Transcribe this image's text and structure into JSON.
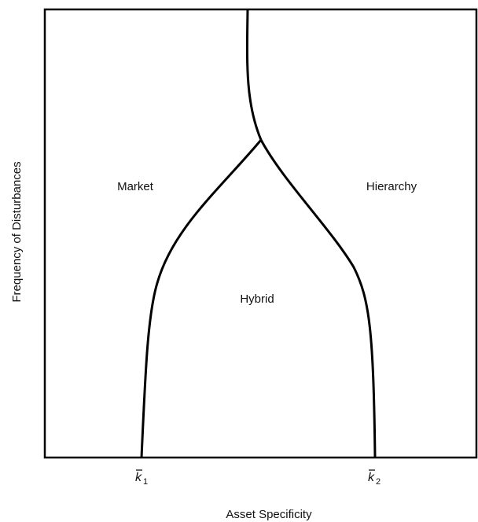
{
  "axes": {
    "x_label": "Asset Specificity",
    "y_label": "Frequency of Disturbances"
  },
  "regions": [
    "Market",
    "Hybrid",
    "Hierarchy"
  ],
  "thresholds": [
    {
      "symbol": "k",
      "subscript": "1"
    },
    {
      "symbol": "k",
      "subscript": "2"
    }
  ]
}
